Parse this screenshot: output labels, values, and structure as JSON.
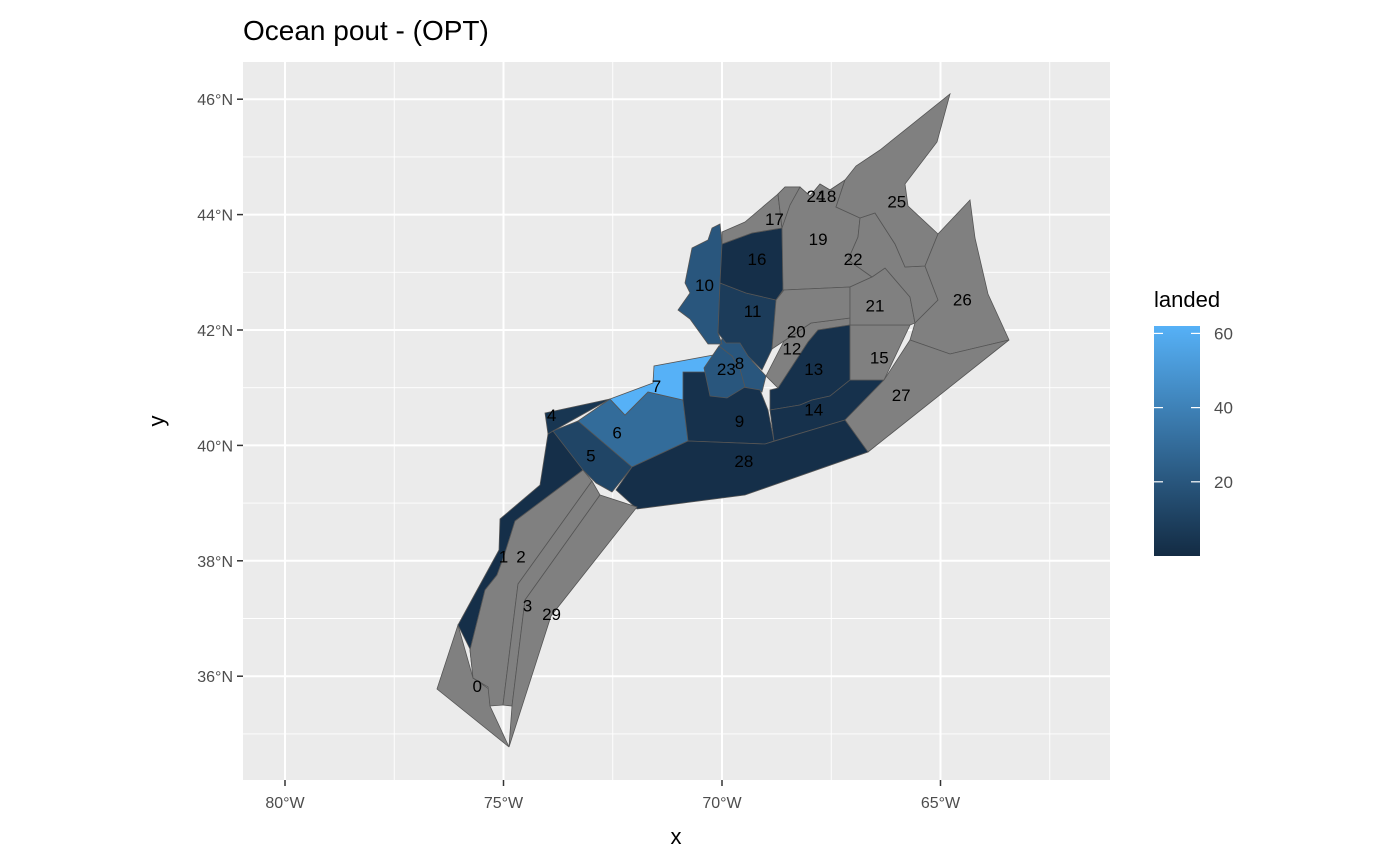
{
  "title": "Ocean pout - (OPT)",
  "x_axis_title": "x",
  "y_axis_title": "y",
  "x_ticks": [
    {
      "lon": -80,
      "label": "80°W"
    },
    {
      "lon": -75,
      "label": "75°W"
    },
    {
      "lon": -70,
      "label": "70°W"
    },
    {
      "lon": -65,
      "label": "65°W"
    }
  ],
  "y_ticks": [
    {
      "lat": 36,
      "label": "36°N"
    },
    {
      "lat": 38,
      "label": "38°N"
    },
    {
      "lat": 40,
      "label": "40°N"
    },
    {
      "lat": 42,
      "label": "42°N"
    },
    {
      "lat": 44,
      "label": "44°N"
    },
    {
      "lat": 46,
      "label": "46°N"
    }
  ],
  "legend": {
    "title": "landed",
    "min": 0,
    "max": 62,
    "ticks": [
      {
        "value": 20,
        "label": "20"
      },
      {
        "value": 40,
        "label": "40"
      },
      {
        "value": 60,
        "label": "60"
      }
    ],
    "color_low": "#132b43",
    "color_high": "#56b1f7",
    "na_color": "#808080"
  },
  "colors": {
    "panel_background": "#ebebeb",
    "grid": "#ffffff",
    "region_border": "#555555"
  },
  "chart_data": {
    "type": "choropleth",
    "xlim": [
      -81,
      -61
    ],
    "ylim": [
      34.4,
      46.6
    ],
    "regions": [
      {
        "id": "0",
        "landed": null,
        "label_pos": [
          -75.6,
          35.8
        ]
      },
      {
        "id": "1",
        "landed": 2,
        "label_pos": [
          -75.0,
          38.05
        ]
      },
      {
        "id": "2",
        "landed": null,
        "label_pos": [
          -74.6,
          38.05
        ]
      },
      {
        "id": "3",
        "landed": null,
        "label_pos": [
          -74.45,
          37.2
        ]
      },
      {
        "id": "4",
        "landed": 5,
        "label_pos": [
          -73.9,
          40.5
        ]
      },
      {
        "id": "5",
        "landed": 12,
        "label_pos": [
          -73.0,
          39.8
        ]
      },
      {
        "id": "6",
        "landed": 30,
        "label_pos": [
          -72.4,
          40.2
        ]
      },
      {
        "id": "7",
        "landed": 62,
        "label_pos": [
          -71.5,
          41.0
        ]
      },
      {
        "id": "8",
        "landed": 20,
        "label_pos": [
          -69.6,
          41.4
        ]
      },
      {
        "id": "9",
        "landed": 3,
        "label_pos": [
          -69.6,
          40.4
        ]
      },
      {
        "id": "10",
        "landed": 20,
        "label_pos": [
          -70.4,
          42.75
        ]
      },
      {
        "id": "11",
        "landed": 8,
        "label_pos": [
          -69.3,
          42.3
        ]
      },
      {
        "id": "12",
        "landed": null,
        "label_pos": [
          -68.4,
          41.65
        ]
      },
      {
        "id": "13",
        "landed": 3,
        "label_pos": [
          -67.9,
          41.3
        ]
      },
      {
        "id": "14",
        "landed": 3,
        "label_pos": [
          -67.9,
          40.6
        ]
      },
      {
        "id": "15",
        "landed": null,
        "label_pos": [
          -66.4,
          41.5
        ]
      },
      {
        "id": "16",
        "landed": 2,
        "label_pos": [
          -69.2,
          43.2
        ]
      },
      {
        "id": "17",
        "landed": null,
        "label_pos": [
          -68.8,
          43.9
        ]
      },
      {
        "id": "18",
        "landed": null,
        "label_pos": [
          -67.6,
          44.3
        ]
      },
      {
        "id": "19",
        "landed": null,
        "label_pos": [
          -67.8,
          43.55
        ]
      },
      {
        "id": "20",
        "landed": null,
        "label_pos": [
          -68.3,
          41.95
        ]
      },
      {
        "id": "21",
        "landed": null,
        "label_pos": [
          -66.5,
          42.4
        ]
      },
      {
        "id": "22",
        "landed": null,
        "label_pos": [
          -67.0,
          43.2
        ]
      },
      {
        "id": "23",
        "landed": 20,
        "label_pos": [
          -69.9,
          41.3
        ]
      },
      {
        "id": "24",
        "landed": null,
        "label_pos": [
          -67.85,
          44.3
        ]
      },
      {
        "id": "25",
        "landed": null,
        "label_pos": [
          -66.0,
          44.2
        ]
      },
      {
        "id": "26",
        "landed": null,
        "label_pos": [
          -64.5,
          42.5
        ]
      },
      {
        "id": "27",
        "landed": null,
        "label_pos": [
          -65.9,
          40.85
        ]
      },
      {
        "id": "28",
        "landed": 2,
        "label_pos": [
          -69.5,
          39.7
        ]
      },
      {
        "id": "29",
        "landed": null,
        "label_pos": [
          -73.9,
          37.05
        ]
      }
    ]
  }
}
